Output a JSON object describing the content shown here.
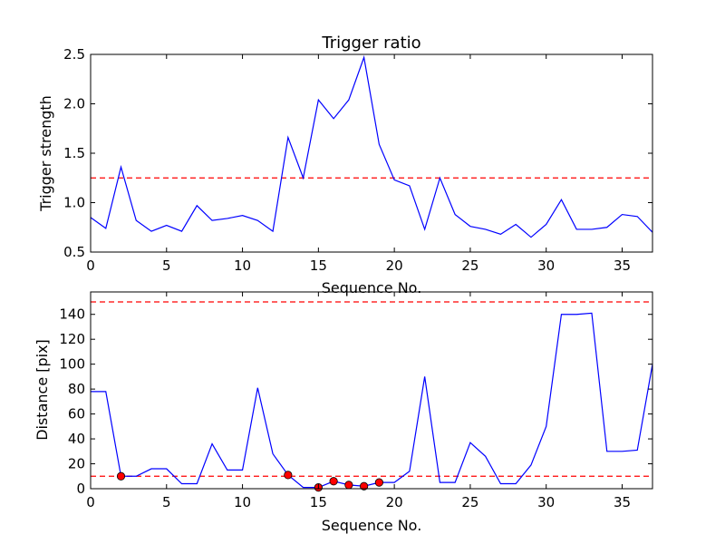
{
  "chart_data": [
    {
      "type": "line",
      "title": "Trigger ratio",
      "xlabel": "Sequence No.",
      "ylabel": "Trigger strength",
      "xlim": [
        0,
        37
      ],
      "ylim": [
        0.5,
        2.5
      ],
      "xticks": [
        "0",
        "5",
        "10",
        "15",
        "20",
        "25",
        "30",
        "35"
      ],
      "yticks": [
        "0.5",
        "1.0",
        "1.5",
        "2.0",
        "2.5"
      ],
      "grid": false,
      "threshold": 1.25,
      "threshold_color": "#ff0000",
      "line_color": "#0000ff",
      "x": [
        0,
        1,
        2,
        3,
        4,
        5,
        6,
        7,
        8,
        9,
        10,
        11,
        12,
        13,
        14,
        15,
        16,
        17,
        18,
        19,
        20,
        21,
        22,
        23,
        24,
        25,
        26,
        27,
        28,
        29,
        30,
        31,
        32,
        33,
        34,
        35,
        36,
        37
      ],
      "values": [
        0.85,
        0.74,
        1.36,
        0.82,
        0.71,
        0.77,
        0.71,
        0.97,
        0.82,
        0.84,
        0.87,
        0.82,
        0.71,
        1.66,
        1.25,
        2.04,
        1.85,
        2.04,
        2.47,
        1.59,
        1.23,
        1.17,
        0.73,
        1.25,
        0.88,
        0.76,
        0.73,
        0.68,
        0.78,
        0.65,
        0.78,
        1.03,
        0.73,
        0.73,
        0.75,
        0.88,
        0.86,
        0.7
      ]
    },
    {
      "type": "line",
      "title": "",
      "xlabel": "Sequence No.",
      "ylabel": "Distance [pix]",
      "xlim": [
        0,
        37
      ],
      "ylim": [
        0,
        158
      ],
      "xticks": [
        "0",
        "5",
        "10",
        "15",
        "20",
        "25",
        "30",
        "35"
      ],
      "yticks": [
        "0",
        "20",
        "40",
        "60",
        "80",
        "100",
        "120",
        "140"
      ],
      "grid": false,
      "thresholds": [
        10,
        150
      ],
      "threshold_color": "#ff0000",
      "line_color": "#0000ff",
      "marker_color": "#ff0000",
      "x": [
        0,
        1,
        2,
        3,
        4,
        5,
        6,
        7,
        8,
        9,
        10,
        11,
        12,
        13,
        14,
        15,
        16,
        17,
        18,
        19,
        20,
        21,
        22,
        23,
        24,
        25,
        26,
        27,
        28,
        29,
        30,
        31,
        32,
        33,
        34,
        35,
        36,
        37
      ],
      "values": [
        78,
        78,
        10,
        10,
        16,
        16,
        4,
        4,
        36,
        15,
        15,
        81,
        28,
        11,
        1,
        1,
        6,
        3,
        2,
        5,
        5,
        14,
        90,
        5,
        5,
        37,
        26,
        4,
        4,
        19,
        50,
        140,
        140,
        141,
        30,
        30,
        31,
        100
      ],
      "marked_points": [
        {
          "x": 2,
          "y": 10
        },
        {
          "x": 13,
          "y": 11
        },
        {
          "x": 15,
          "y": 1
        },
        {
          "x": 16,
          "y": 6
        },
        {
          "x": 17,
          "y": 3
        },
        {
          "x": 18,
          "y": 2
        },
        {
          "x": 19,
          "y": 5
        }
      ]
    }
  ]
}
